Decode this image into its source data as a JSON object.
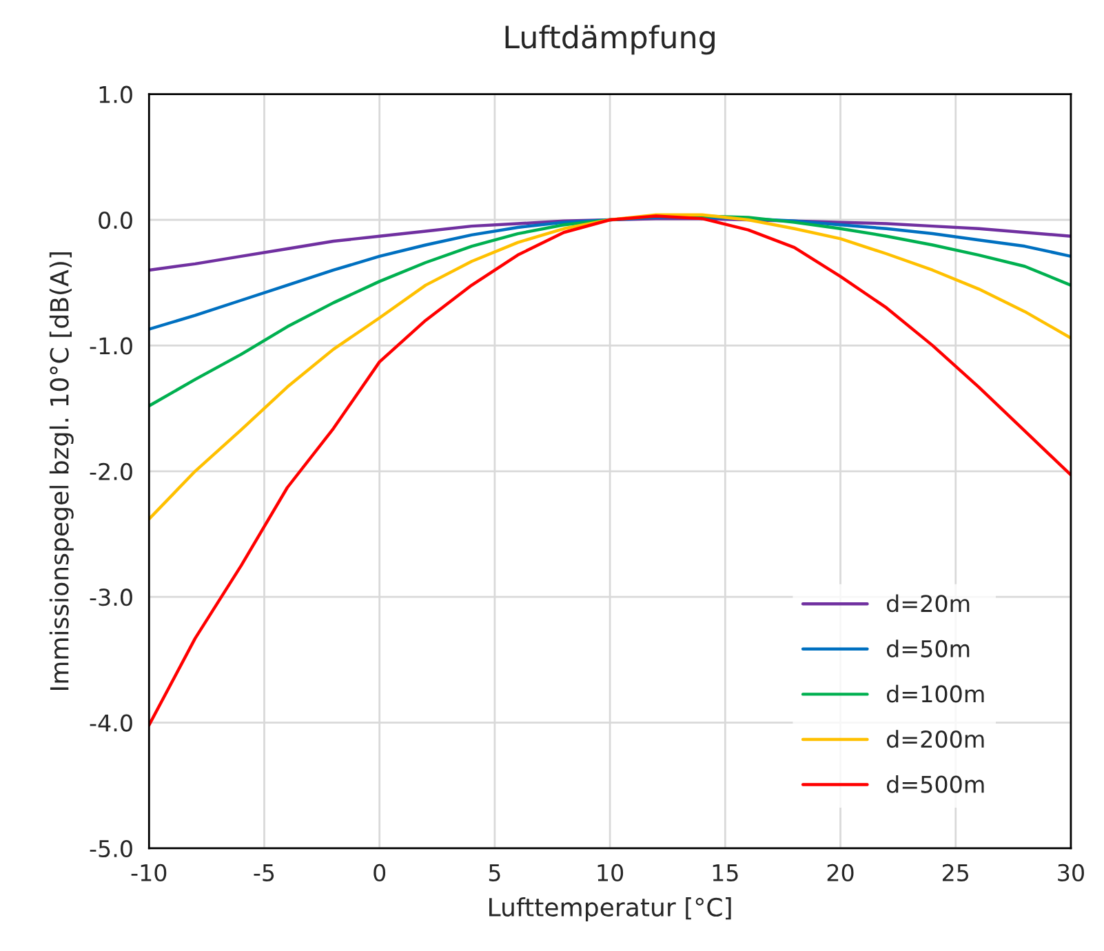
{
  "chart_data": {
    "type": "line",
    "title": "Luftdämpfung",
    "xlabel": "Lufttemperatur [°C]",
    "ylabel": "Immissionspegel bzgl. 10°C [dB(A)]",
    "x": [
      -10,
      -8,
      -6,
      -4,
      -2,
      0,
      2,
      4,
      6,
      8,
      10,
      12,
      14,
      16,
      18,
      20,
      22,
      24,
      26,
      28,
      30
    ],
    "series": [
      {
        "name": "d=20m",
        "color": "#7030a0",
        "values": [
          -0.4,
          -0.35,
          -0.29,
          -0.23,
          -0.17,
          -0.13,
          -0.09,
          -0.05,
          -0.03,
          -0.01,
          0,
          0.01,
          0.01,
          0.0,
          -0.01,
          -0.02,
          -0.03,
          -0.05,
          -0.07,
          -0.1,
          -0.13
        ]
      },
      {
        "name": "d=50m",
        "color": "#0070c0",
        "values": [
          -0.87,
          -0.76,
          -0.64,
          -0.52,
          -0.4,
          -0.29,
          -0.2,
          -0.12,
          -0.06,
          -0.02,
          0,
          0.02,
          0.02,
          0.01,
          -0.01,
          -0.04,
          -0.07,
          -0.11,
          -0.16,
          -0.21,
          -0.29
        ]
      },
      {
        "name": "d=100m",
        "color": "#00b050",
        "values": [
          -1.48,
          -1.27,
          -1.07,
          -0.85,
          -0.66,
          -0.49,
          -0.34,
          -0.21,
          -0.11,
          -0.04,
          0,
          0.03,
          0.03,
          0.02,
          -0.02,
          -0.07,
          -0.13,
          -0.2,
          -0.28,
          -0.37,
          -0.52
        ]
      },
      {
        "name": "d=200m",
        "color": "#ffc000",
        "values": [
          -2.38,
          -2.0,
          -1.67,
          -1.33,
          -1.03,
          -0.78,
          -0.52,
          -0.33,
          -0.18,
          -0.07,
          0,
          0.04,
          0.04,
          0.0,
          -0.07,
          -0.15,
          -0.27,
          -0.4,
          -0.55,
          -0.73,
          -0.94
        ]
      },
      {
        "name": "d=500m",
        "color": "#ff0000",
        "values": [
          -4.02,
          -3.33,
          -2.75,
          -2.13,
          -1.66,
          -1.13,
          -0.8,
          -0.52,
          -0.28,
          -0.1,
          0,
          0.03,
          0.01,
          -0.08,
          -0.22,
          -0.45,
          -0.7,
          -1.0,
          -1.33,
          -1.68,
          -2.03
        ]
      }
    ],
    "xlim": [
      -10,
      30
    ],
    "xticks": [
      -10,
      -5,
      0,
      5,
      10,
      15,
      20,
      25,
      30
    ],
    "ylim": [
      -5,
      1
    ],
    "yticks": [
      {
        "value": -5,
        "label": "-5.0"
      },
      {
        "value": -4,
        "label": "-4.0"
      },
      {
        "value": -3,
        "label": "-3.0"
      },
      {
        "value": -2,
        "label": "-2.0"
      },
      {
        "value": -1,
        "label": "-1.0"
      },
      {
        "value": 0,
        "label": "0.0"
      },
      {
        "value": 1,
        "label": "1.0"
      }
    ],
    "grid": true,
    "legend": "bottom right",
    "marker": "none",
    "line_style": "solid"
  }
}
